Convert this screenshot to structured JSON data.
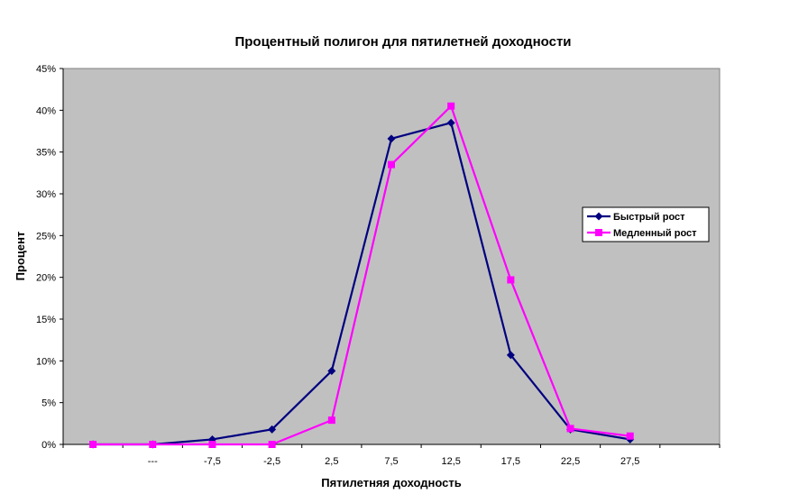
{
  "chart_data": {
    "type": "line",
    "title": "Процентный полигон для пятилетней доходности",
    "xlabel": "Пятилетняя доходность",
    "ylabel": "Процент",
    "categories": [
      "",
      "---",
      "-7,5",
      "-2,5",
      "2,5",
      "7,5",
      "12,5",
      "17,5",
      "22,5",
      "27,5"
    ],
    "y_ticks": [
      "0%",
      "5%",
      "10%",
      "15%",
      "20%",
      "25%",
      "30%",
      "35%",
      "40%",
      "45%"
    ],
    "ylim": [
      0,
      45
    ],
    "grid": false,
    "plot_background": "#C0C0C0",
    "legend_position": "right",
    "series": [
      {
        "name": "Быстрый рост",
        "color": "#000080",
        "marker": "diamond",
        "values": [
          0,
          0,
          0.6,
          1.8,
          8.8,
          36.6,
          38.5,
          10.7,
          1.8,
          0.6
        ]
      },
      {
        "name": "Медленный рост",
        "color": "#FF00FF",
        "marker": "square",
        "values": [
          0,
          0,
          0,
          0,
          2.9,
          33.5,
          40.5,
          19.7,
          1.9,
          1.0
        ]
      }
    ]
  }
}
